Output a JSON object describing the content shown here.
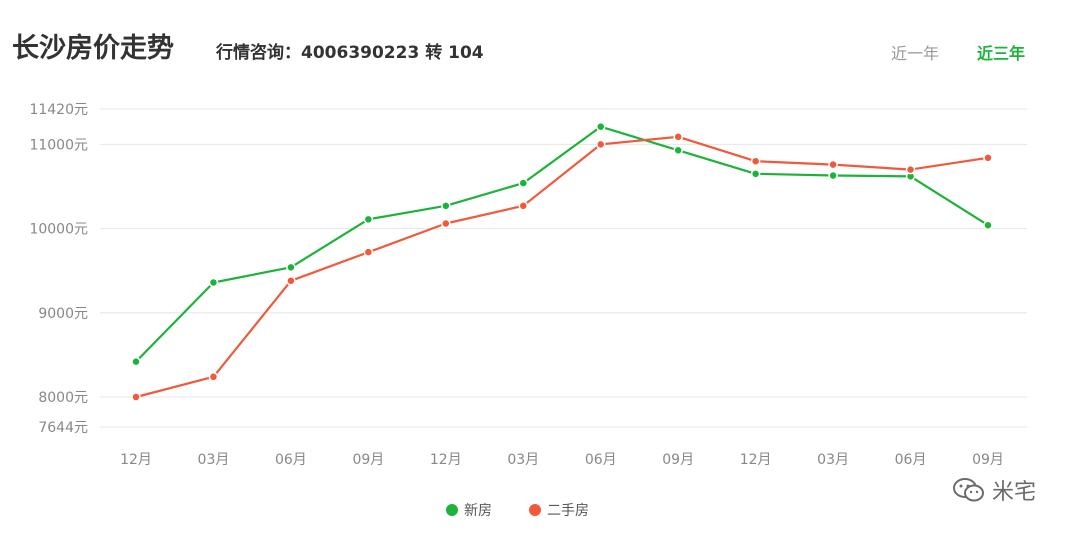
{
  "header": {
    "title": "长沙房价走势",
    "hotline": "行情咨询：4006390223 转 104",
    "tabs": [
      {
        "label": "近一年",
        "active": false
      },
      {
        "label": "近三年",
        "active": true
      }
    ]
  },
  "watermark": {
    "text": "米宅",
    "icon": "wechat-icon"
  },
  "colors": {
    "new": "#1db33a",
    "second": "#f05a3a",
    "grid": "#e6e6e6",
    "axis_text": "#888888"
  },
  "chart_data": {
    "type": "line",
    "categories": [
      "12月",
      "03月",
      "06月",
      "09月",
      "12月",
      "03月",
      "06月",
      "09月",
      "12月",
      "03月",
      "06月",
      "09月"
    ],
    "y_ticks": [
      {
        "value": 7644,
        "label": "7644元"
      },
      {
        "value": 8000,
        "label": "8000元"
      },
      {
        "value": 9000,
        "label": "9000元"
      },
      {
        "value": 10000,
        "label": "10000元"
      },
      {
        "value": 11000,
        "label": "11000元"
      },
      {
        "value": 11420,
        "label": "11420元"
      }
    ],
    "ylim": [
      7644,
      11420
    ],
    "grid": true,
    "legend_position": "bottom",
    "series": [
      {
        "name": "新房",
        "color": "#1db33a",
        "values": [
          8420,
          9360,
          9540,
          10110,
          10270,
          10540,
          11210,
          10930,
          10650,
          10630,
          10620,
          10040
        ]
      },
      {
        "name": "二手房",
        "color": "#f05a3a",
        "values": [
          8000,
          8240,
          9380,
          9720,
          10060,
          10270,
          11000,
          11090,
          10800,
          10760,
          10700,
          10840
        ]
      }
    ]
  }
}
